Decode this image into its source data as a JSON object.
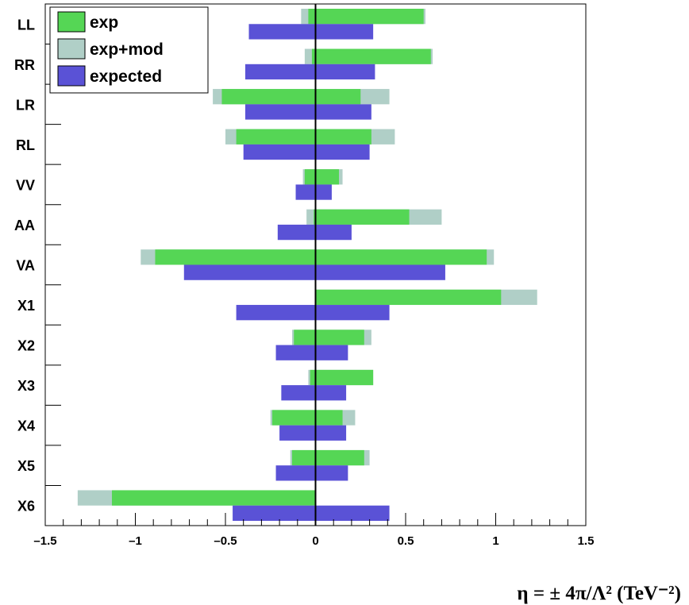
{
  "chart_data": {
    "type": "bar",
    "orientation": "horizontal",
    "categories": [
      "LL",
      "RR",
      "LR",
      "RL",
      "VV",
      "AA",
      "VA",
      "X1",
      "X2",
      "X3",
      "X4",
      "X5",
      "X6"
    ],
    "series": [
      {
        "name": "exp+mod",
        "color": "#b0cfc7",
        "lower": [
          -0.08,
          -0.06,
          -0.57,
          -0.5,
          -0.07,
          -0.05,
          -0.97,
          0.0,
          -0.13,
          -0.04,
          -0.25,
          -0.14,
          -1.32
        ],
        "upper": [
          0.61,
          0.65,
          0.41,
          0.44,
          0.15,
          0.7,
          0.99,
          1.23,
          0.31,
          0.32,
          0.22,
          0.3,
          0.0
        ]
      },
      {
        "name": "exp",
        "color": "#55d655",
        "lower": [
          -0.04,
          -0.02,
          -0.52,
          -0.44,
          -0.06,
          -0.01,
          -0.89,
          0.0,
          -0.12,
          -0.03,
          -0.24,
          -0.13,
          -1.13
        ],
        "upper": [
          0.6,
          0.64,
          0.25,
          0.31,
          0.13,
          0.52,
          0.95,
          1.03,
          0.27,
          0.32,
          0.15,
          0.27,
          0.0
        ]
      },
      {
        "name": "expected",
        "color": "#5a52d6",
        "lower": [
          -0.37,
          -0.39,
          -0.39,
          -0.4,
          -0.11,
          -0.21,
          -0.73,
          -0.44,
          -0.22,
          -0.19,
          -0.2,
          -0.22,
          -0.46
        ],
        "upper": [
          0.32,
          0.33,
          0.31,
          0.3,
          0.09,
          0.2,
          0.72,
          0.41,
          0.18,
          0.17,
          0.17,
          0.18,
          0.41
        ]
      }
    ],
    "xlim": [
      -1.5,
      1.5
    ],
    "xticks": [
      "-1.5",
      "-1",
      "-0.5",
      "0",
      "0.5",
      "1",
      "1.5"
    ],
    "xlabel": "η = ± 4π/Λ² (TeV⁻²)",
    "legend": {
      "placement": "top-left",
      "entries": [
        {
          "label": "exp",
          "color": "#55d655"
        },
        {
          "label": "exp+mod",
          "color": "#b0cfc7"
        },
        {
          "label": "expected",
          "color": "#5a52d6"
        }
      ]
    },
    "grid": false
  }
}
